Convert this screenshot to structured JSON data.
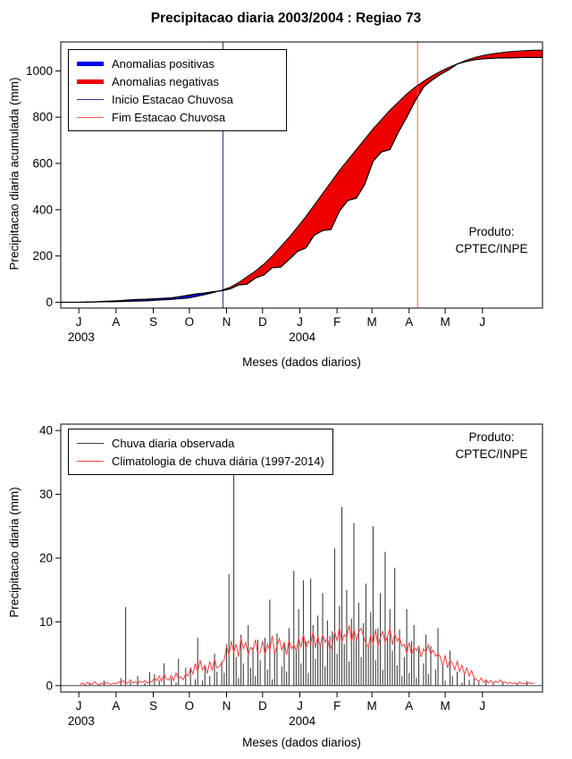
{
  "window": {
    "background": "#ffffff"
  },
  "chart_data": [
    {
      "type": "area",
      "title": "Precipitacao diaria 2003/2004 : Regiao 73",
      "xlabel": "Meses (dados diarios)",
      "ylabel": "Precipitacao diaria acumulada (mm)",
      "produto_line1": "Produto:",
      "produto_line2": "CPTEC/INPE",
      "ylim": [
        0,
        1100
      ],
      "yticks": [
        0,
        200,
        400,
        600,
        800,
        1000
      ],
      "xdomain": [
        -15,
        386
      ],
      "xticks": {
        "labels": [
          "J",
          "A",
          "S",
          "O",
          "N",
          "D",
          "J",
          "F",
          "M",
          "A",
          "M",
          "J"
        ],
        "days": [
          0,
          31,
          62,
          92,
          123,
          153,
          184,
          215,
          244,
          275,
          305,
          336
        ]
      },
      "years": [
        {
          "label": "2003",
          "day": 2
        },
        {
          "label": "2004",
          "day": 186
        }
      ],
      "legend": [
        {
          "label": "Anomalias positivas",
          "color": "#0000ee",
          "width": 5
        },
        {
          "label": "Anomalias negativas",
          "color": "#ee0000",
          "width": 5
        },
        {
          "label": "Inicio Estacao Chuvosa",
          "color": "#30308f",
          "width": 1
        },
        {
          "label": "Fim Estacao Chuvosa",
          "color": "#ff5a5a",
          "width": 1
        }
      ],
      "events": [
        {
          "name": "inicio-estacao-chuvosa",
          "day": 120,
          "color": "#30308f"
        },
        {
          "name": "fim-estacao-chuvosa",
          "day": 282,
          "color": "#ff5a5a"
        }
      ],
      "anomaly_colors": {
        "positive": "#0000ee",
        "negative": "#ee0000"
      },
      "days": [
        -15,
        0,
        7,
        14,
        21,
        28,
        35,
        42,
        49,
        56,
        63,
        70,
        77,
        84,
        91,
        98,
        105,
        112,
        119,
        126,
        133,
        140,
        147,
        154,
        161,
        168,
        175,
        182,
        189,
        196,
        203,
        210,
        217,
        224,
        231,
        238,
        245,
        252,
        259,
        266,
        273,
        280,
        287,
        294,
        301,
        308,
        315,
        322,
        329,
        336,
        343,
        350,
        357,
        364,
        371,
        378,
        386
      ],
      "series": [
        {
          "name": "observado-acumulado",
          "color": "#000000",
          "values": [
            0,
            0,
            1,
            2,
            4,
            5,
            7,
            10,
            12,
            13,
            15,
            17,
            19,
            24,
            30,
            36,
            40,
            46,
            50,
            58,
            75,
            78,
            105,
            118,
            150,
            152,
            185,
            220,
            235,
            290,
            310,
            315,
            395,
            440,
            450,
            510,
            610,
            650,
            660,
            735,
            800,
            870,
            930,
            960,
            985,
            1005,
            1030,
            1040,
            1048,
            1052,
            1054,
            1056,
            1056,
            1057,
            1058,
            1058,
            1058
          ]
        },
        {
          "name": "climatologia-acumulada",
          "color": "#000000",
          "values": [
            0,
            0,
            1,
            1,
            2,
            2,
            3,
            4,
            5,
            6,
            8,
            10,
            12,
            15,
            18,
            25,
            33,
            42,
            52,
            65,
            85,
            110,
            135,
            165,
            200,
            240,
            280,
            325,
            370,
            420,
            470,
            520,
            570,
            615,
            660,
            705,
            750,
            790,
            830,
            865,
            900,
            930,
            955,
            978,
            998,
            1015,
            1030,
            1045,
            1057,
            1066,
            1073,
            1078,
            1082,
            1085,
            1087,
            1089,
            1090
          ]
        }
      ]
    },
    {
      "type": "bar",
      "xlabel": "Meses (dados diarios)",
      "ylabel": "Precipitacao diaria (mm)",
      "produto_line1": "Produto:",
      "produto_line2": "CPTEC/INPE",
      "ylim": [
        0,
        40
      ],
      "yticks": [
        0,
        10,
        20,
        30,
        40
      ],
      "xdomain": [
        -15,
        386
      ],
      "xticks": {
        "labels": [
          "J",
          "A",
          "S",
          "O",
          "N",
          "D",
          "J",
          "F",
          "M",
          "A",
          "M",
          "J"
        ],
        "days": [
          0,
          31,
          62,
          92,
          123,
          153,
          184,
          215,
          244,
          275,
          305,
          336
        ]
      },
      "years": [
        {
          "label": "2003",
          "day": 2
        },
        {
          "label": "2004",
          "day": 186
        }
      ],
      "legend": [
        {
          "label": "Chuva diaria observada",
          "color": "#404040",
          "width": 1
        },
        {
          "label": "Climatologia de chuva diária (1997-2014)",
          "color": "#ff4040",
          "width": 1
        }
      ],
      "bars": {
        "name": "chuva-diaria-observada",
        "color": "#404040",
        "day_start": 1,
        "day_step": 2,
        "values": [
          0,
          0,
          0,
          0,
          0.5,
          0,
          0,
          0,
          0,
          0,
          0.8,
          0,
          0,
          0,
          0,
          0,
          0,
          1.2,
          0,
          12.3,
          0,
          0.6,
          0,
          0,
          1.5,
          0,
          0,
          0.4,
          0,
          2.1,
          0,
          1.8,
          0,
          0.9,
          0,
          3.5,
          0,
          0,
          1.2,
          0,
          0.5,
          4.2,
          0,
          0,
          2.8,
          0,
          2.5,
          0,
          1.0,
          7.5,
          0,
          0.8,
          3.2,
          0,
          1.5,
          0,
          5.0,
          2.2,
          0,
          3.8,
          2.0,
          6.5,
          17.5,
          0,
          33.0,
          4.5,
          1.2,
          8.0,
          3.5,
          0,
          9.5,
          2.8,
          6.0,
          1.5,
          7.2,
          4.0,
          0,
          7.5,
          2.5,
          13.5,
          1.0,
          5.5,
          8.2,
          0,
          3.0,
          6.8,
          2.2,
          9.0,
          0,
          18.0,
          5.5,
          12.0,
          3.5,
          16.5,
          7.0,
          2.0,
          16.8,
          9.5,
          4.2,
          11.0,
          6.5,
          14.5,
          3.0,
          10.2,
          7.8,
          8.5,
          21.5,
          5.0,
          12.5,
          28.0,
          6.5,
          15.0,
          3.8,
          10.5,
          25.5,
          7.2,
          13.0,
          4.5,
          9.8,
          16.0,
          6.0,
          11.5,
          25.0,
          4.0,
          9.0,
          14.5,
          2.5,
          21.0,
          7.5,
          12.0,
          5.5,
          18.5,
          3.2,
          8.8,
          1.5,
          4.5,
          12.0,
          2.0,
          7.0,
          9.5,
          1.2,
          5.8,
          0,
          3.5,
          8.0,
          1.8,
          6.2,
          0,
          2.5,
          9.0,
          0,
          3.0,
          0.8,
          0,
          5.5,
          1.5,
          0,
          2.2,
          0,
          0.5,
          1.8,
          0,
          0.9,
          0,
          1.2,
          0,
          0.5,
          0,
          0,
          1.0,
          0,
          0,
          0.3,
          0,
          0,
          0,
          0.6,
          0,
          0,
          0,
          0,
          0,
          0.4,
          0,
          0,
          0,
          0.7,
          0,
          0,
          0
        ]
      },
      "line": {
        "name": "climatologia-chuva-diaria",
        "color": "#ff4040",
        "day_start": 1,
        "day_step": 2,
        "values": [
          0.2,
          0.4,
          0.1,
          0.5,
          0.3,
          0.2,
          0.6,
          0.3,
          0.1,
          0.4,
          0.2,
          0.5,
          0.3,
          0.2,
          0.4,
          0.3,
          0.6,
          0.4,
          0.8,
          0.3,
          0.5,
          0.9,
          0.4,
          0.6,
          0.3,
          0.7,
          0.5,
          0.8,
          0.4,
          0.6,
          0.6,
          1.2,
          0.8,
          1.5,
          0.7,
          1.8,
          1.0,
          0.9,
          1.6,
          0.8,
          2.0,
          1.1,
          1.4,
          0.9,
          1.9,
          1.5,
          2.8,
          1.8,
          3.5,
          2.2,
          4.0,
          2.5,
          3.2,
          1.9,
          3.8,
          2.4,
          4.2,
          2.8,
          3.0,
          3.6,
          4.0,
          6.2,
          4.8,
          7.0,
          5.2,
          6.5,
          4.5,
          7.5,
          5.8,
          6.8,
          4.9,
          6.0,
          5.5,
          7.2,
          5.0,
          5.2,
          7.0,
          4.8,
          6.5,
          5.5,
          7.8,
          5.0,
          6.2,
          7.4,
          5.6,
          6.8,
          4.9,
          7.2,
          5.8,
          6.4,
          5.5,
          7.5,
          6.0,
          8.2,
          5.8,
          7.0,
          6.5,
          8.5,
          5.9,
          7.8,
          6.2,
          8.0,
          6.8,
          7.4,
          5.6,
          6.5,
          8.5,
          7.0,
          9.2,
          6.8,
          8.0,
          7.5,
          9.5,
          6.9,
          8.8,
          7.2,
          8.4,
          9.0,
          7.8,
          6.6,
          6.0,
          8.0,
          6.5,
          8.8,
          6.2,
          7.5,
          8.5,
          6.8,
          7.8,
          9.0,
          6.4,
          8.2,
          7.0,
          7.6,
          6.2,
          6.5,
          5.0,
          6.8,
          4.8,
          6.0,
          5.5,
          6.2,
          4.5,
          5.8,
          5.2,
          6.4,
          4.9,
          5.6,
          4.6,
          5.0,
          4.5,
          3.0,
          4.8,
          2.8,
          4.0,
          3.5,
          2.5,
          3.8,
          2.2,
          3.2,
          1.8,
          2.8,
          1.5,
          2.4,
          1.2,
          1.0,
          0.6,
          1.2,
          0.5,
          0.9,
          0.4,
          0.8,
          0.3,
          0.7,
          0.5,
          0.9,
          0.4,
          0.6,
          0.3,
          0.5,
          0.3,
          0.5,
          0.2,
          0.6,
          0.3,
          0.4,
          0.2,
          0.5,
          0.3,
          0.4
        ]
      }
    }
  ]
}
